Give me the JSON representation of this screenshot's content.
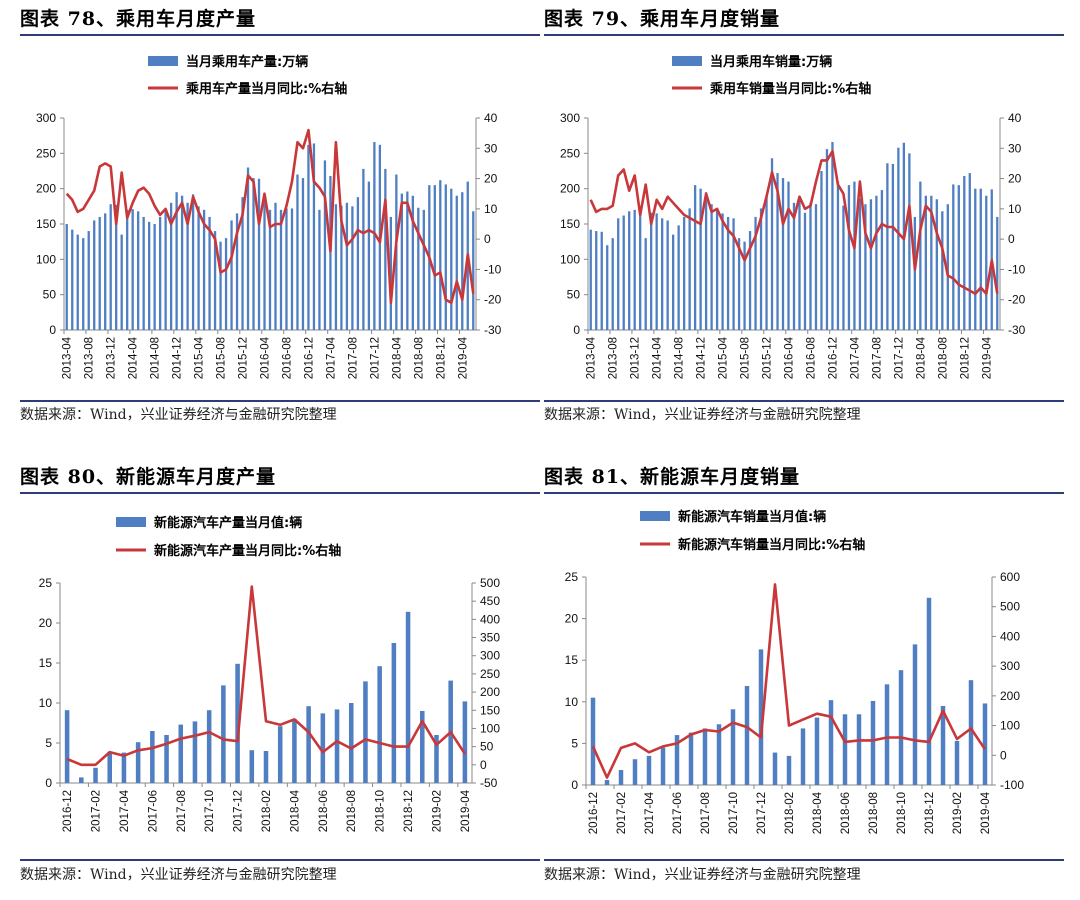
{
  "colors": {
    "bar": "#4f7fc2",
    "line": "#c8373a",
    "rule": "#2f3c7a",
    "axis": "#888888"
  },
  "source_text": "数据来源：Wind，兴业证券经济与金融研究院整理",
  "panels": [
    {
      "title": "图表 78、乘用车月度产量",
      "source": "数据来源：Wind，兴业证券经济与金融研究院整理",
      "legend": [
        "当月乘用车产量:万辆",
        "乘用车产量当月同比:%右轴"
      ]
    },
    {
      "title": "图表 79、乘用车月度销量",
      "source": "数据来源：Wind，兴业证券经济与金融研究院整理",
      "legend": [
        "当月乘用车销量:万辆",
        "乘用车销量当月同比:%右轴"
      ]
    },
    {
      "title": "图表 80、新能源车月度产量",
      "source": "数据来源：Wind，兴业证券经济与金融研究院整理",
      "legend": [
        "新能源汽车产量当月值:辆",
        "新能源汽车产量当月同比:%右轴"
      ]
    },
    {
      "title": "图表 81、新能源车月度销量",
      "source": "数据来源：Wind，兴业证券经济与金融研究院整理",
      "legend": [
        "新能源汽车销量当月值:辆",
        "新能源汽车销量当月同比:%右轴"
      ]
    }
  ],
  "chart_data": [
    {
      "type": "bar",
      "start_month": "2013-04",
      "legend_position": "top-center",
      "x_tick_labels": [
        "2013-04",
        "2013-08",
        "2013-12",
        "2014-04",
        "2014-08",
        "2014-12",
        "2015-04",
        "2015-08",
        "2015-12",
        "2016-04",
        "2016-08",
        "2016-12",
        "2017-04",
        "2017-08",
        "2017-12",
        "2018-04",
        "2018-08",
        "2018-12",
        "2019-04"
      ],
      "y_left": {
        "min": 0,
        "max": 300,
        "ticks": [
          0,
          50,
          100,
          150,
          200,
          250,
          300
        ]
      },
      "y_right": {
        "min": -30,
        "max": 40,
        "ticks": [
          -30,
          -20,
          -10,
          0,
          10,
          20,
          30,
          40
        ]
      },
      "series": [
        {
          "name": "当月乘用车产量:万辆",
          "type": "bar",
          "axis": "left",
          "values": [
            150,
            142,
            135,
            130,
            140,
            155,
            160,
            165,
            178,
            177,
            135,
            170,
            171,
            168,
            160,
            153,
            150,
            160,
            170,
            180,
            195,
            190,
            180,
            192,
            175,
            170,
            160,
            140,
            125,
            130,
            155,
            165,
            188,
            230,
            215,
            214,
            185,
            170,
            180,
            170,
            172,
            172,
            220,
            215,
            262,
            264,
            170,
            240,
            218,
            178,
            176,
            180,
            175,
            188,
            228,
            210,
            266,
            262,
            228,
            160,
            220,
            193,
            196,
            190,
            173,
            170,
            205,
            205,
            212,
            206,
            200,
            190,
            195,
            210,
            168
          ]
        },
        {
          "name": "乘用车产量当月同比:%右轴",
          "type": "line",
          "axis": "right",
          "values": [
            15,
            13,
            9,
            10,
            13,
            16,
            24,
            25,
            24,
            5,
            22,
            7,
            12,
            16,
            17,
            15,
            11,
            8,
            10,
            5,
            9,
            12,
            5,
            14,
            9,
            5,
            3,
            0,
            -11,
            -10,
            -6,
            2,
            8,
            21,
            19,
            5,
            15,
            4,
            5,
            5,
            11,
            19,
            32,
            30,
            36,
            19,
            17,
            14,
            -4,
            32,
            6,
            -2,
            0,
            3,
            2,
            3,
            2,
            -1,
            13,
            -21,
            -1,
            12,
            12,
            6,
            2,
            -2,
            -6,
            -12,
            -11,
            -20,
            -21,
            -14,
            -20,
            -5,
            -18
          ]
        }
      ]
    },
    {
      "type": "bar",
      "start_month": "2013-04",
      "legend_position": "top-center",
      "x_tick_labels": [
        "2013-04",
        "2013-08",
        "2013-12",
        "2014-04",
        "2014-08",
        "2014-12",
        "2015-04",
        "2015-08",
        "2015-12",
        "2016-04",
        "2016-08",
        "2016-12",
        "2017-04",
        "2017-08",
        "2017-12",
        "2018-04",
        "2018-08",
        "2018-12",
        "2019-04"
      ],
      "y_left": {
        "min": 0,
        "max": 300,
        "ticks": [
          0,
          50,
          100,
          150,
          200,
          250,
          300
        ]
      },
      "y_right": {
        "min": -30,
        "max": 40,
        "ticks": [
          -30,
          -20,
          -10,
          0,
          10,
          20,
          30,
          40
        ]
      },
      "series": [
        {
          "name": "当月乘用车销量:万辆",
          "type": "bar",
          "axis": "left",
          "values": [
            142,
            140,
            139,
            120,
            130,
            158,
            162,
            168,
            170,
            175,
            130,
            166,
            165,
            158,
            155,
            135,
            148,
            160,
            172,
            205,
            200,
            195,
            178,
            170,
            165,
            160,
            158,
            130,
            125,
            140,
            160,
            172,
            190,
            243,
            222,
            215,
            210,
            180,
            185,
            166,
            180,
            178,
            225,
            256,
            266,
            210,
            176,
            205,
            210,
            186,
            178,
            185,
            190,
            198,
            236,
            235,
            258,
            265,
            250,
            160,
            210,
            190,
            190,
            185,
            168,
            178,
            206,
            205,
            218,
            222,
            200,
            200,
            190,
            199,
            160
          ]
        },
        {
          "name": "乘用车销量当月同比:%右轴",
          "type": "line",
          "axis": "right",
          "values": [
            13,
            9,
            10,
            10,
            11,
            21,
            23,
            16,
            21,
            8,
            18,
            5,
            13,
            10,
            14,
            12,
            10,
            8,
            7,
            6,
            5,
            15,
            9,
            10,
            6,
            3,
            1,
            -3,
            -7,
            -3,
            1,
            7,
            14,
            22,
            16,
            5,
            10,
            7,
            14,
            10,
            11,
            19,
            26,
            26,
            29,
            18,
            15,
            3,
            -3,
            19,
            2,
            -3,
            2,
            5,
            4,
            4,
            2,
            0,
            11,
            -10,
            3,
            11,
            9,
            2,
            -3,
            -12,
            -13,
            -15,
            -16,
            -17,
            -18,
            -16,
            -18,
            -7,
            -18
          ]
        }
      ]
    },
    {
      "type": "bar",
      "start_month": "2016-12",
      "legend_position": "top-center",
      "x_tick_labels": [
        "2016-12",
        "2017-02",
        "2017-04",
        "2017-06",
        "2017-08",
        "2017-10",
        "2017-12",
        "2018-02",
        "2018-04",
        "2018-06",
        "2018-08",
        "2018-10",
        "2018-12",
        "2019-02",
        "2019-04"
      ],
      "y_left": {
        "min": 0,
        "max": 25,
        "ticks": [
          0,
          5,
          10,
          15,
          20,
          25
        ]
      },
      "y_right": {
        "min": -50,
        "max": 500,
        "ticks": [
          -50,
          0,
          50,
          100,
          150,
          200,
          250,
          300,
          350,
          400,
          450,
          500
        ]
      },
      "series": [
        {
          "name": "新能源汽车产量当月值:辆",
          "type": "bar",
          "axis": "left",
          "values": [
            9.1,
            0.7,
            1.9,
            3.9,
            3.8,
            5.1,
            6.5,
            6.0,
            7.3,
            7.7,
            9.1,
            12.2,
            14.9,
            4.1,
            4.0,
            7.1,
            8.0,
            9.6,
            8.7,
            9.2,
            10.0,
            12.7,
            14.6,
            17.5,
            21.4,
            9.0,
            6.0,
            12.8,
            10.2
          ]
        },
        {
          "name": "新能源汽车产量当月同比:%右轴",
          "type": "line",
          "axis": "right",
          "values": [
            16,
            0,
            0,
            35,
            25,
            40,
            46,
            58,
            72,
            80,
            90,
            70,
            65,
            490,
            120,
            110,
            125,
            90,
            35,
            65,
            45,
            70,
            60,
            50,
            50,
            120,
            55,
            90,
            30
          ]
        }
      ]
    },
    {
      "type": "bar",
      "start_month": "2016-12",
      "legend_position": "top-center",
      "x_tick_labels": [
        "2016-12",
        "2017-02",
        "2017-04",
        "2017-06",
        "2017-08",
        "2017-10",
        "2017-12",
        "2018-02",
        "2018-04",
        "2018-06",
        "2018-08",
        "2018-10",
        "2018-12",
        "2019-02",
        "2019-04"
      ],
      "y_left": {
        "min": 0,
        "max": 25,
        "ticks": [
          0,
          5,
          10,
          15,
          20,
          25
        ]
      },
      "y_right": {
        "min": -100,
        "max": 600,
        "ticks": [
          -100,
          0,
          100,
          200,
          300,
          400,
          500,
          600
        ]
      },
      "series": [
        {
          "name": "新能源汽车销量当月值:辆",
          "type": "bar",
          "axis": "left",
          "values": [
            10.5,
            0.6,
            1.8,
            3.1,
            3.5,
            4.5,
            6.0,
            6.3,
            6.8,
            7.3,
            9.1,
            11.9,
            16.3,
            3.9,
            3.5,
            6.8,
            8.1,
            10.2,
            8.5,
            8.5,
            10.1,
            12.1,
            13.8,
            16.9,
            22.5,
            9.5,
            5.3,
            12.6,
            9.8
          ]
        },
        {
          "name": "新能源汽车销量当月同比:%右轴",
          "type": "line",
          "axis": "right",
          "values": [
            30,
            -75,
            25,
            40,
            10,
            30,
            40,
            70,
            85,
            80,
            110,
            95,
            60,
            575,
            100,
            120,
            140,
            130,
            45,
            50,
            50,
            60,
            60,
            50,
            45,
            150,
            55,
            90,
            20
          ]
        }
      ]
    }
  ]
}
